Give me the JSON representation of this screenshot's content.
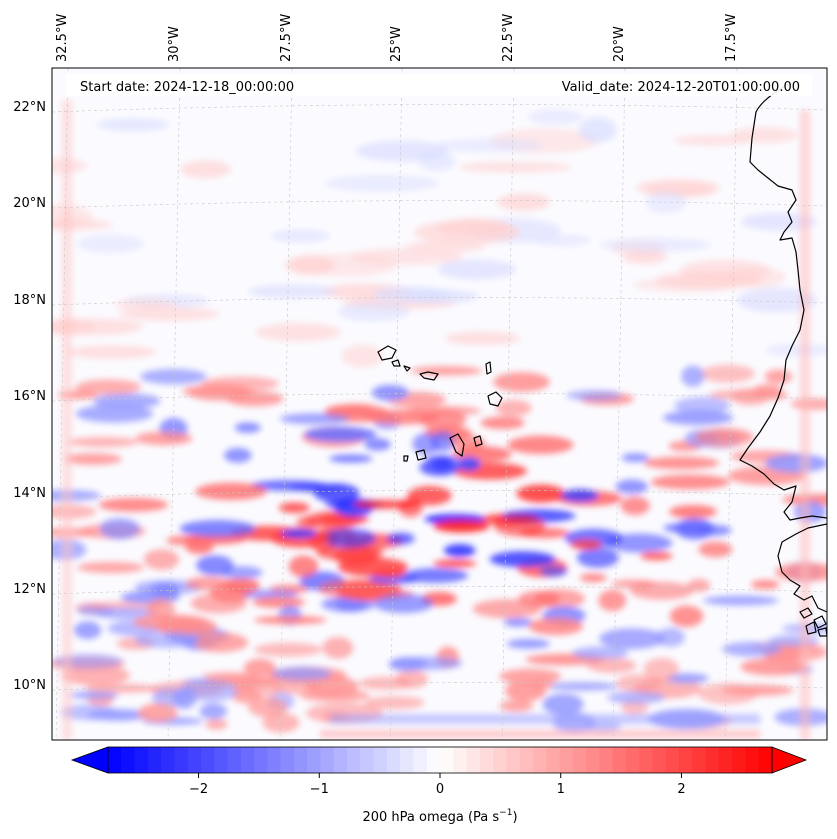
{
  "map": {
    "header": {
      "start_date": "Start date: 2024-12-18_00:00:00",
      "valid_date": "Valid_date: 2024-12-20T01:00:00.00"
    },
    "longitude_ticks": [
      "32.5°W",
      "30°W",
      "27.5°W",
      "25°W",
      "22.5°W",
      "20°W",
      "17.5°W"
    ],
    "latitude_ticks": [
      "22°N",
      "20°N",
      "18°N",
      "16°N",
      "14°N",
      "12°N",
      "10°N"
    ],
    "colorbar": {
      "ticks": [
        "−2",
        "−1",
        "0",
        "1",
        "2"
      ],
      "tick_values": [
        -2,
        -1,
        0,
        1,
        2
      ],
      "range": [
        -2.75,
        2.75
      ],
      "label_main": "200 hPa omega (Pa s",
      "label_sup": "−1",
      "label_close": ")",
      "negative_color": "#0000ff",
      "zero_color": "#ffffff",
      "positive_color": "#ff0000",
      "extend": "both"
    },
    "colors": {
      "coastline": "#000000",
      "gridline": "#c8c8c8",
      "background_field": "#fbfbff"
    },
    "grid": true
  }
}
